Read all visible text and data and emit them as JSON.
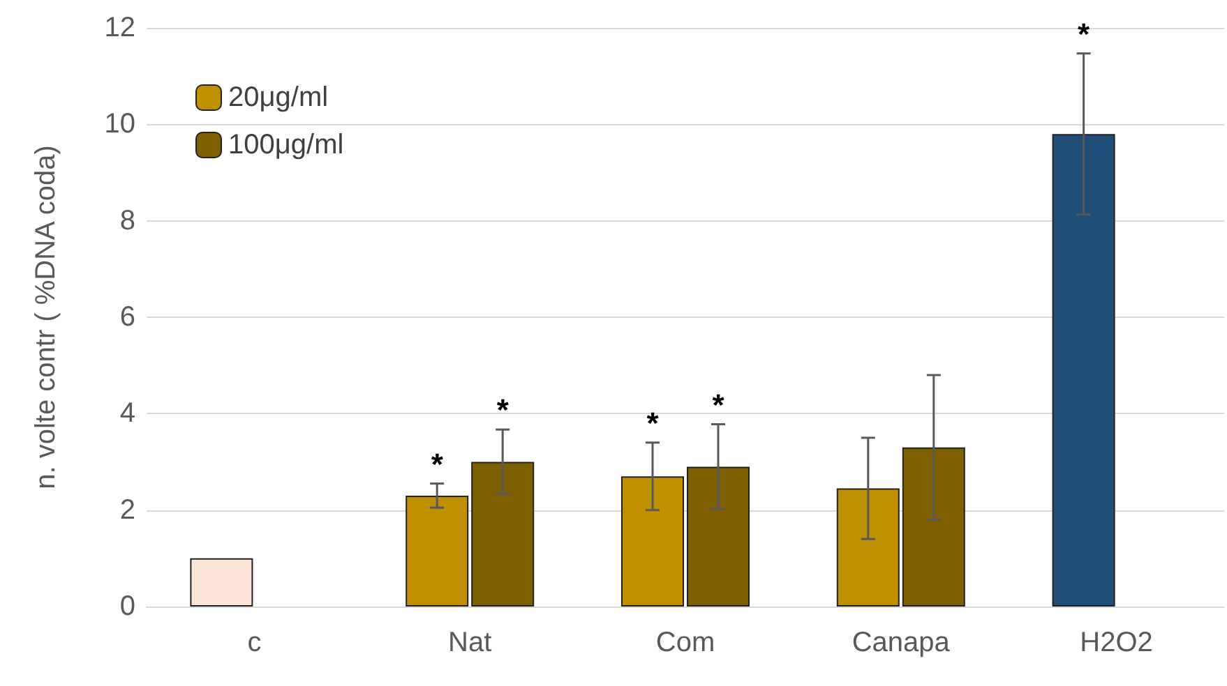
{
  "chart_data": {
    "type": "bar",
    "ylabel": "n. volte contr ( %DNA coda)",
    "categories": [
      "c",
      "Nat",
      "Com",
      "Canapa",
      "H2O2"
    ],
    "series": [
      {
        "name": "20μg/ml",
        "color": "#bf9000",
        "colors": [
          "#fbe5d6",
          "#bf9000",
          "#bf9000",
          "#bf9000",
          "#1f4e79"
        ],
        "values": [
          1.0,
          2.3,
          2.7,
          2.45,
          9.8
        ],
        "errors": [
          null,
          0.25,
          0.7,
          1.05,
          1.67
        ]
      },
      {
        "name": "100μg/ml",
        "color": "#7f6000",
        "values": [
          null,
          3.0,
          2.9,
          3.3,
          null
        ],
        "errors": [
          null,
          0.67,
          0.88,
          1.5,
          null
        ]
      }
    ],
    "annotations": [
      {
        "text": "*",
        "x": "Nat",
        "y": 2.3
      },
      {
        "text": "*",
        "x": "Nat",
        "y": 3.0
      },
      {
        "text": "*",
        "x": "Com",
        "y": 2.7
      },
      {
        "text": "*",
        "x": "Com",
        "y": 2.9
      },
      {
        "text": "*",
        "x": "H2O2",
        "y": 9.8
      }
    ],
    "ylim": [
      0,
      12
    ],
    "yticks": [
      0,
      2,
      4,
      6,
      8,
      10,
      12
    ],
    "grid": "y",
    "legend": "top left"
  }
}
